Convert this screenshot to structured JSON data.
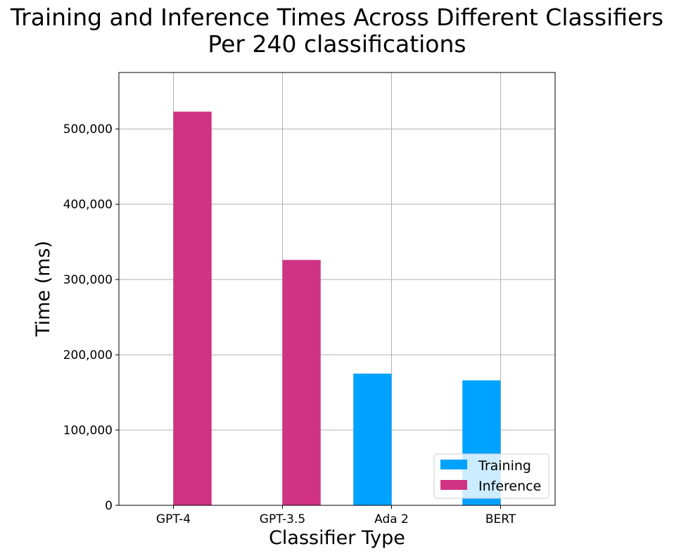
{
  "chart_data": {
    "type": "bar",
    "title": "Training and Inference Times Across Different Classifiers",
    "subtitle": "Per 240 classifications",
    "xlabel": "Classifier Type",
    "ylabel": "Time (ms)",
    "categories": [
      "GPT-4",
      "GPT-3.5",
      "Ada 2",
      "BERT"
    ],
    "series": [
      {
        "name": "Training",
        "color": "#00a2ff",
        "values": [
          0,
          0,
          175000,
          166000
        ]
      },
      {
        "name": "Inference",
        "color": "#d03384",
        "values": [
          523000,
          326000,
          0,
          0
        ]
      }
    ],
    "ylim": [
      0,
      575000
    ],
    "yticks": [
      0,
      100000,
      200000,
      300000,
      400000,
      500000
    ],
    "ytick_labels": [
      "0",
      "100,000",
      "200,000",
      "300,000",
      "400,000",
      "500,000"
    ],
    "grid": true,
    "legend_position": "lower-right"
  }
}
